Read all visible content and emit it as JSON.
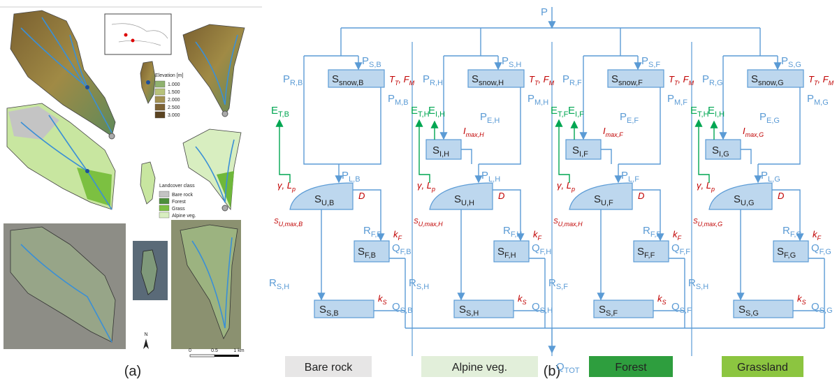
{
  "panel_a": {
    "elevation_title": "Elevation [m]",
    "elevation_classes": [
      "1.000",
      "1.500",
      "2.000",
      "2.500",
      "3.000"
    ],
    "landcover_title": "Landcover class",
    "landcover_classes": [
      "Bare rock",
      "Forest",
      "Grass",
      "Alpine veg."
    ],
    "north": "N",
    "scale": [
      "0",
      "0.5",
      "1 km"
    ]
  },
  "panel_b": {
    "p": [
      [
        "P"
      ]
    ],
    "q_tot": [
      [
        "Q",
        "TOT"
      ]
    ],
    "legend": [
      {
        "label": "Bare rock",
        "color": "#e7e6e6"
      },
      {
        "label": "Alpine veg.",
        "color": "#e2efda"
      },
      {
        "label": "Forest",
        "color": "#2e9e3e"
      },
      {
        "label": "Grassland",
        "color": "#8cc540"
      }
    ],
    "columns": [
      {
        "pr": [
          [
            "P",
            "R,B"
          ]
        ],
        "ps": [
          [
            "P",
            "S,B"
          ]
        ],
        "snow": [
          [
            "S",
            "snow,B"
          ]
        ],
        "tf": [
          [
            "T",
            "T"
          ],
          [
            ", F",
            "M"
          ]
        ],
        "pm": [
          [
            "P",
            "M,B"
          ]
        ],
        "et": [
          [
            "E",
            "T,B"
          ]
        ],
        "gl": [
          [
            "γ, L",
            "p"
          ]
        ],
        "pl": [
          [
            "P",
            "L,B"
          ]
        ],
        "su": [
          [
            "S",
            "U,B"
          ]
        ],
        "sumax": [
          [
            "S",
            "U,max,B"
          ]
        ],
        "d": [
          [
            "D"
          ]
        ],
        "rf": [
          [
            "R",
            "F,B"
          ]
        ],
        "kf": [
          [
            "k",
            "F"
          ]
        ],
        "sf": [
          [
            "S",
            "F,B"
          ]
        ],
        "qf": [
          [
            "Q",
            "F,B"
          ]
        ],
        "rs": [
          [
            "R",
            "S,H"
          ]
        ],
        "ss": [
          [
            "S",
            "S,B"
          ]
        ],
        "ks": [
          [
            "k",
            "S"
          ]
        ],
        "qs": [
          [
            "Q",
            "S,B"
          ]
        ]
      },
      {
        "pr": [
          [
            "P",
            "R,H"
          ]
        ],
        "ps": [
          [
            "P",
            "S,H"
          ]
        ],
        "snow": [
          [
            "S",
            "snow,H"
          ]
        ],
        "tf": [
          [
            "T",
            "T"
          ],
          [
            ", F",
            "M"
          ]
        ],
        "pm": [
          [
            "P",
            "M,H"
          ]
        ],
        "et": [
          [
            "E",
            "T,H"
          ]
        ],
        "ei": [
          [
            "E",
            "I,H"
          ]
        ],
        "imax": [
          [
            "I",
            "max,H"
          ]
        ],
        "si": [
          [
            "S",
            "I,H"
          ]
        ],
        "pe": [
          [
            "P",
            "E,H"
          ]
        ],
        "gl": [
          [
            "γ, L",
            "p"
          ]
        ],
        "pl": [
          [
            "P",
            "L,H"
          ]
        ],
        "su": [
          [
            "S",
            "U,H"
          ]
        ],
        "sumax": [
          [
            "S",
            "U,max,H"
          ]
        ],
        "d": [
          [
            "D"
          ]
        ],
        "rf": [
          [
            "R",
            "F,H"
          ]
        ],
        "kf": [
          [
            "k",
            "F"
          ]
        ],
        "sf": [
          [
            "S",
            "F,H"
          ]
        ],
        "qf": [
          [
            "Q",
            "F,H"
          ]
        ],
        "rs": [
          [
            "R",
            "S,H"
          ]
        ],
        "ss": [
          [
            "S",
            "S,H"
          ]
        ],
        "ks": [
          [
            "k",
            "S"
          ]
        ],
        "qs": [
          [
            "Q",
            "S,H"
          ]
        ]
      },
      {
        "pr": [
          [
            "P",
            "R,F"
          ]
        ],
        "ps": [
          [
            "P",
            "S,F"
          ]
        ],
        "snow": [
          [
            "S",
            "snow,F"
          ]
        ],
        "tf": [
          [
            "T",
            "T"
          ],
          [
            ", F",
            "M"
          ]
        ],
        "pm": [
          [
            "P",
            "M,F"
          ]
        ],
        "et": [
          [
            "E",
            "T,F"
          ]
        ],
        "ei": [
          [
            "E",
            "I,F"
          ]
        ],
        "imax": [
          [
            "I",
            "max,F"
          ]
        ],
        "si": [
          [
            "S",
            "I,F"
          ]
        ],
        "pe": [
          [
            "P",
            "E,F"
          ]
        ],
        "gl": [
          [
            "γ, L",
            "p"
          ]
        ],
        "pl": [
          [
            "P",
            "L,F"
          ]
        ],
        "su": [
          [
            "S",
            "U,F"
          ]
        ],
        "sumax": [
          [
            "S",
            "U,max,H"
          ]
        ],
        "d": [
          [
            "D"
          ]
        ],
        "rf": [
          [
            "R",
            "F,F"
          ]
        ],
        "kf": [
          [
            "k",
            "F"
          ]
        ],
        "sf": [
          [
            "S",
            "F,F"
          ]
        ],
        "qf": [
          [
            "Q",
            "F,F"
          ]
        ],
        "rs": [
          [
            "R",
            "S,F"
          ]
        ],
        "ss": [
          [
            "S",
            "S,F"
          ]
        ],
        "ks": [
          [
            "k",
            "S"
          ]
        ],
        "qs": [
          [
            "Q",
            "S,F"
          ]
        ]
      },
      {
        "pr": [
          [
            "P",
            "R,G"
          ]
        ],
        "ps": [
          [
            "P",
            "S,G"
          ]
        ],
        "snow": [
          [
            "S",
            "snow,G"
          ]
        ],
        "tf": [
          [
            "T",
            "T"
          ],
          [
            ", F",
            "M"
          ]
        ],
        "pm": [
          [
            "P",
            "M,G"
          ]
        ],
        "et": [
          [
            "E",
            "T,H"
          ]
        ],
        "ei": [
          [
            "E",
            "I,H"
          ]
        ],
        "imax": [
          [
            "I",
            "max,G"
          ]
        ],
        "si": [
          [
            "S",
            "I,G"
          ]
        ],
        "pe": [
          [
            "P",
            "E,G"
          ]
        ],
        "gl": [
          [
            "γ, L",
            "p"
          ]
        ],
        "pl": [
          [
            "P",
            "L,G"
          ]
        ],
        "su": [
          [
            "S",
            "U,G"
          ]
        ],
        "sumax": [
          [
            "S",
            "U,max,G"
          ]
        ],
        "d": [
          [
            "D"
          ]
        ],
        "rf": [
          [
            "R",
            "F,G"
          ]
        ],
        "kf": [
          [
            "k",
            "F"
          ]
        ],
        "sf": [
          [
            "S",
            "F,G"
          ]
        ],
        "qf": [
          [
            "Q",
            "F,G"
          ]
        ],
        "rs": [
          [
            "R",
            "S,H"
          ]
        ],
        "ss": [
          [
            "S",
            "S,G"
          ]
        ],
        "ks": [
          [
            "k",
            "S"
          ]
        ],
        "qs": [
          [
            "Q",
            "S,G"
          ]
        ]
      }
    ]
  },
  "captions": {
    "a": "(a)",
    "b": "(b)"
  }
}
